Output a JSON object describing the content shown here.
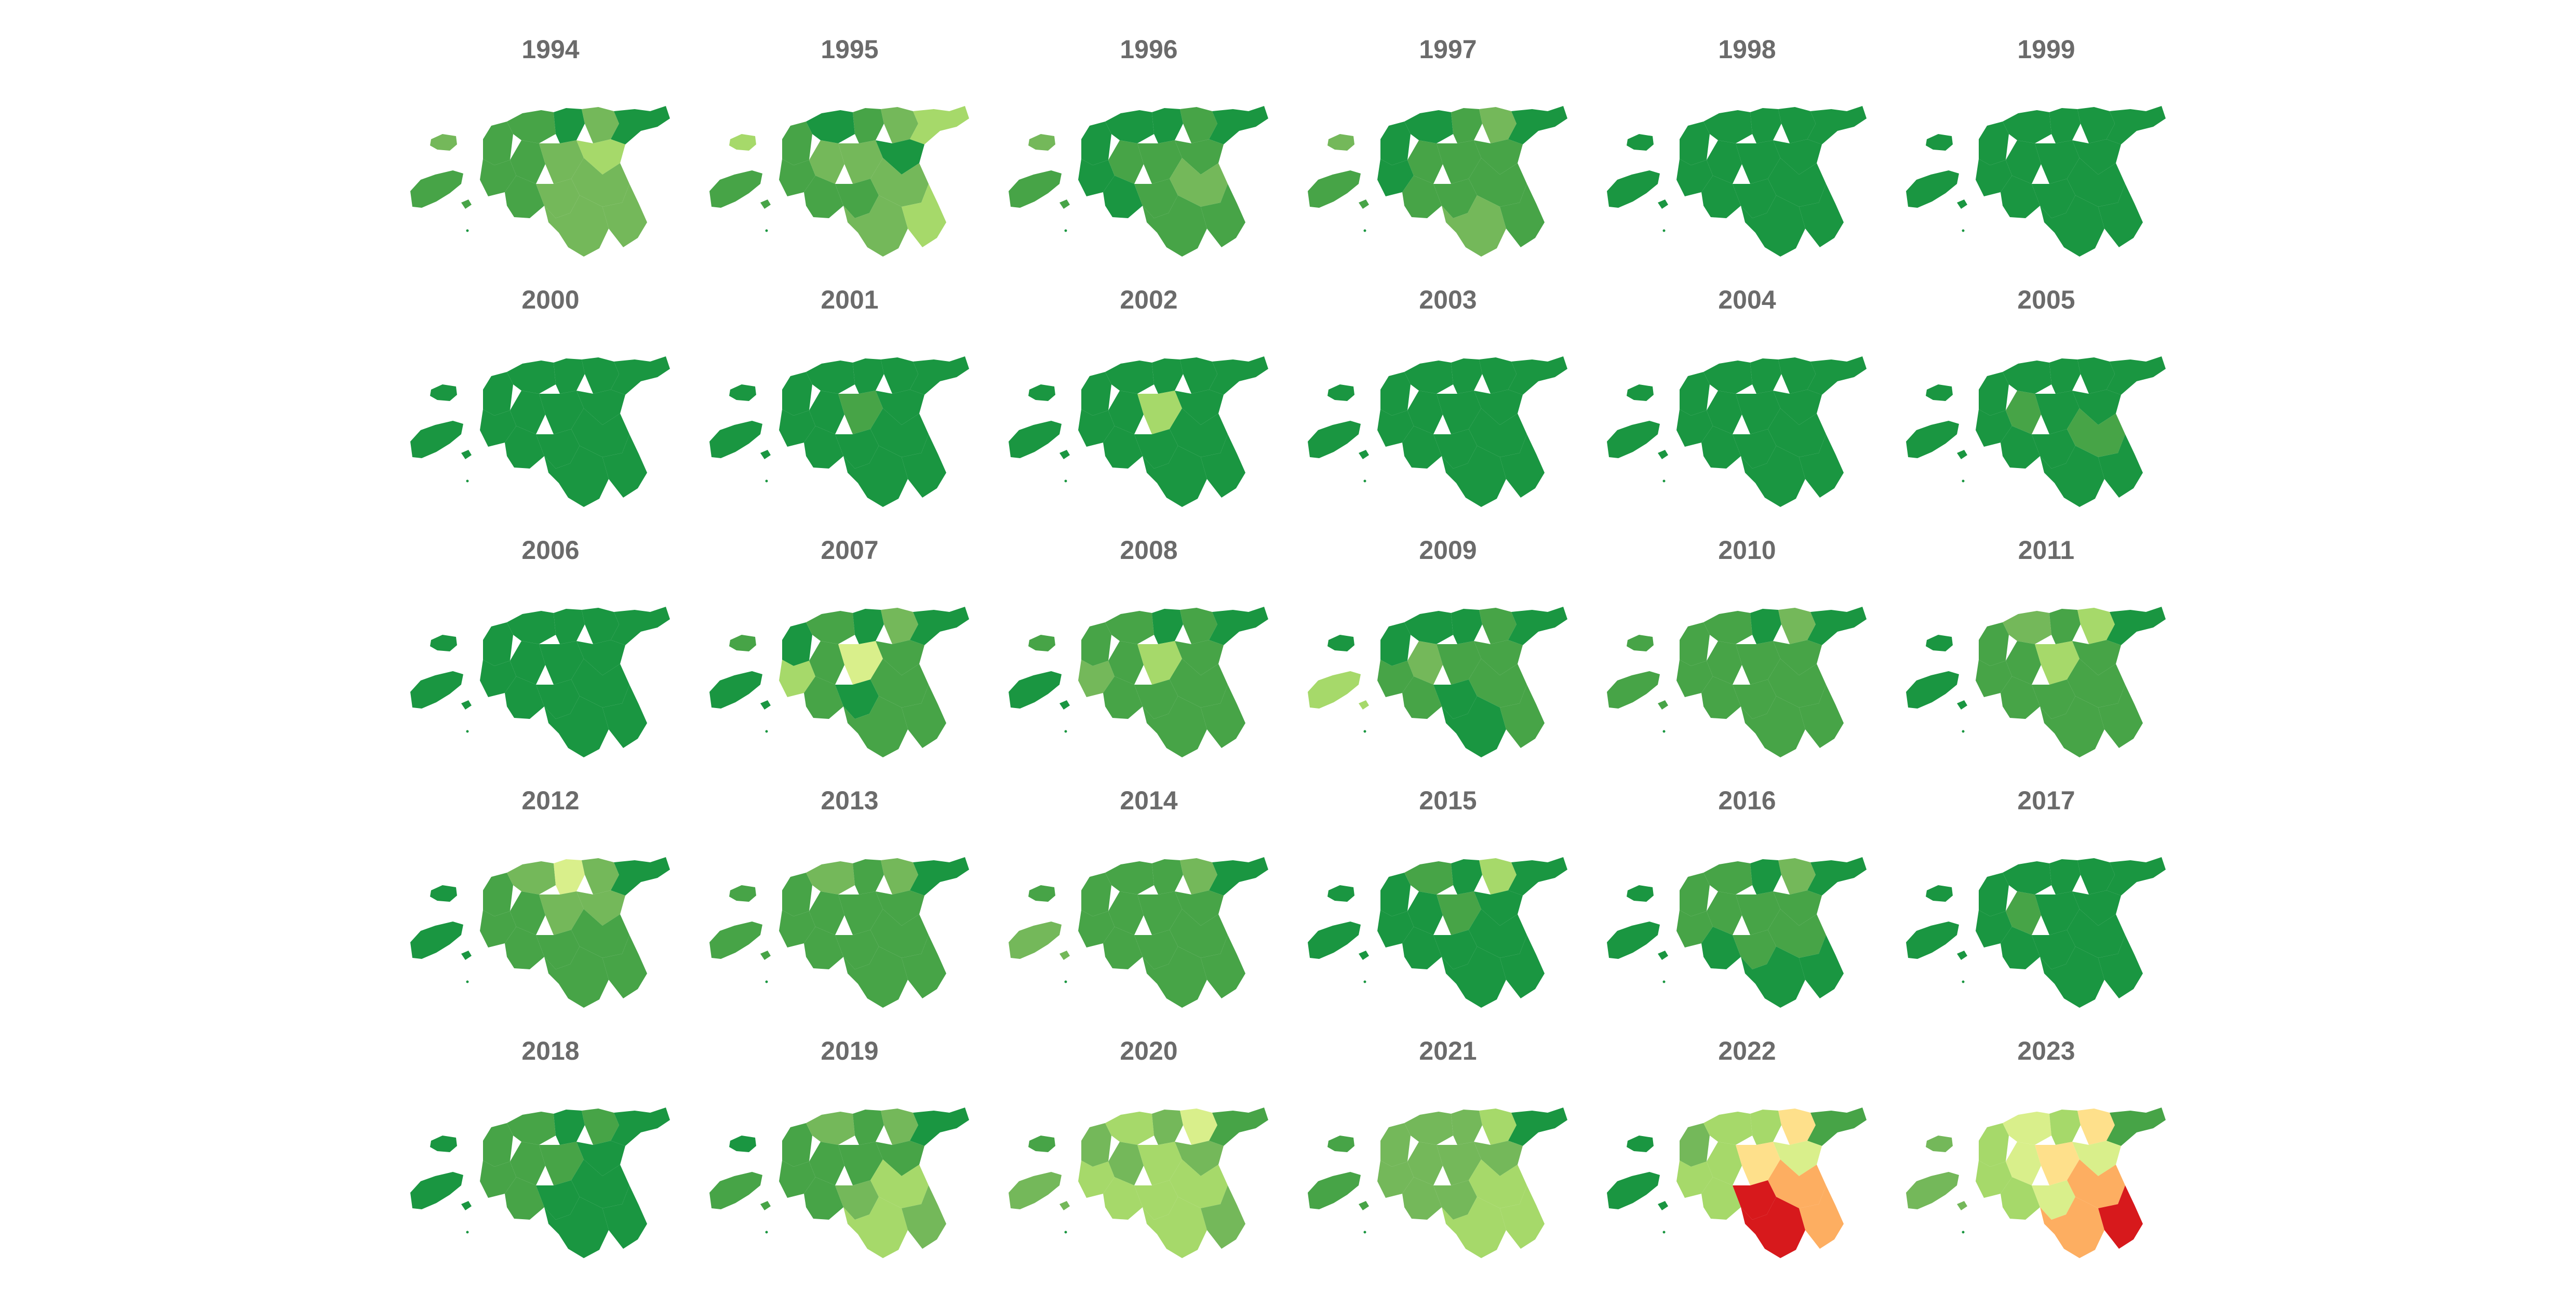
{
  "palette": [
    "#1a9641",
    "#47a447",
    "#74b85a",
    "#a6d96a",
    "#d9ef8b",
    "#fee08b",
    "#fdae61",
    "#f4652f",
    "#d7191c"
  ],
  "region_order": [
    "islands_small",
    "islands_large",
    "nw",
    "north_w",
    "north_c",
    "north_e",
    "ne",
    "west",
    "central_w",
    "central",
    "central_e",
    "sw",
    "s_central",
    "se_north",
    "se_south",
    "far_se"
  ],
  "panels": [
    {
      "year": "1994",
      "levels": [
        2,
        1,
        1,
        1,
        0,
        2,
        0,
        1,
        1,
        2,
        3,
        1,
        2,
        2,
        2,
        2
      ]
    },
    {
      "year": "1995",
      "levels": [
        3,
        1,
        1,
        0,
        1,
        2,
        3,
        1,
        2,
        2,
        0,
        1,
        1,
        2,
        2,
        3
      ]
    },
    {
      "year": "1996",
      "levels": [
        2,
        1,
        0,
        0,
        0,
        1,
        0,
        0,
        1,
        1,
        1,
        0,
        1,
        2,
        1,
        1
      ]
    },
    {
      "year": "1997",
      "levels": [
        2,
        1,
        0,
        0,
        1,
        2,
        0,
        0,
        1,
        1,
        1,
        1,
        1,
        1,
        2,
        1
      ]
    },
    {
      "year": "1998",
      "levels": [
        0,
        0,
        0,
        0,
        0,
        0,
        0,
        0,
        0,
        0,
        0,
        0,
        0,
        0,
        0,
        0
      ]
    },
    {
      "year": "1999",
      "levels": [
        0,
        0,
        0,
        0,
        0,
        0,
        0,
        0,
        0,
        0,
        0,
        0,
        0,
        0,
        0,
        0
      ]
    },
    {
      "year": "2000",
      "levels": [
        0,
        0,
        0,
        0,
        0,
        0,
        0,
        0,
        0,
        0,
        0,
        0,
        0,
        0,
        0,
        0
      ]
    },
    {
      "year": "2001",
      "levels": [
        0,
        0,
        0,
        0,
        0,
        0,
        0,
        0,
        0,
        1,
        0,
        0,
        0,
        0,
        0,
        0
      ]
    },
    {
      "year": "2002",
      "levels": [
        0,
        0,
        0,
        0,
        0,
        0,
        0,
        0,
        0,
        3,
        0,
        0,
        0,
        0,
        0,
        0
      ]
    },
    {
      "year": "2003",
      "levels": [
        0,
        0,
        0,
        0,
        0,
        0,
        0,
        0,
        0,
        0,
        0,
        0,
        0,
        0,
        0,
        0
      ]
    },
    {
      "year": "2004",
      "levels": [
        0,
        0,
        0,
        0,
        0,
        0,
        0,
        0,
        0,
        0,
        0,
        0,
        0,
        0,
        0,
        0
      ]
    },
    {
      "year": "2005",
      "levels": [
        0,
        0,
        0,
        0,
        0,
        0,
        0,
        0,
        1,
        0,
        0,
        0,
        0,
        1,
        0,
        0
      ]
    },
    {
      "year": "2006",
      "levels": [
        0,
        0,
        0,
        0,
        0,
        0,
        0,
        0,
        0,
        0,
        0,
        0,
        0,
        0,
        0,
        0
      ]
    },
    {
      "year": "2007",
      "levels": [
        1,
        0,
        0,
        1,
        0,
        2,
        0,
        3,
        1,
        4,
        1,
        1,
        0,
        1,
        1,
        1
      ]
    },
    {
      "year": "2008",
      "levels": [
        1,
        0,
        1,
        1,
        0,
        1,
        0,
        2,
        1,
        3,
        1,
        1,
        1,
        1,
        1,
        1
      ]
    },
    {
      "year": "2009",
      "levels": [
        0,
        3,
        0,
        0,
        0,
        1,
        0,
        1,
        2,
        1,
        1,
        1,
        0,
        1,
        0,
        1
      ]
    },
    {
      "year": "2010",
      "levels": [
        1,
        1,
        1,
        1,
        0,
        2,
        0,
        1,
        1,
        1,
        1,
        1,
        1,
        1,
        1,
        1
      ]
    },
    {
      "year": "2011",
      "levels": [
        0,
        0,
        1,
        2,
        1,
        3,
        0,
        1,
        1,
        3,
        1,
        1,
        1,
        1,
        1,
        1
      ]
    },
    {
      "year": "2012",
      "levels": [
        0,
        0,
        1,
        2,
        4,
        2,
        0,
        1,
        1,
        2,
        2,
        1,
        1,
        1,
        1,
        1
      ]
    },
    {
      "year": "2013",
      "levels": [
        1,
        1,
        1,
        2,
        1,
        2,
        0,
        1,
        1,
        1,
        1,
        1,
        1,
        1,
        1,
        1
      ]
    },
    {
      "year": "2014",
      "levels": [
        1,
        2,
        1,
        1,
        1,
        2,
        0,
        1,
        1,
        1,
        1,
        1,
        1,
        1,
        1,
        1
      ]
    },
    {
      "year": "2015",
      "levels": [
        0,
        0,
        0,
        1,
        0,
        3,
        0,
        0,
        0,
        1,
        0,
        0,
        0,
        0,
        0,
        0
      ]
    },
    {
      "year": "2016",
      "levels": [
        0,
        0,
        1,
        1,
        0,
        2,
        0,
        1,
        1,
        1,
        1,
        0,
        1,
        1,
        0,
        0
      ]
    },
    {
      "year": "2017",
      "levels": [
        0,
        0,
        0,
        0,
        0,
        0,
        0,
        0,
        1,
        0,
        0,
        0,
        0,
        0,
        0,
        0
      ]
    },
    {
      "year": "2018",
      "levels": [
        0,
        0,
        1,
        1,
        0,
        1,
        0,
        1,
        1,
        1,
        0,
        1,
        0,
        0,
        0,
        0
      ]
    },
    {
      "year": "2019",
      "levels": [
        0,
        1,
        1,
        2,
        1,
        2,
        0,
        1,
        1,
        1,
        1,
        1,
        2,
        3,
        3,
        2
      ]
    },
    {
      "year": "2020",
      "levels": [
        1,
        2,
        2,
        3,
        2,
        4,
        1,
        3,
        2,
        3,
        2,
        3,
        3,
        3,
        3,
        2
      ]
    },
    {
      "year": "2021",
      "levels": [
        1,
        1,
        2,
        2,
        2,
        3,
        0,
        2,
        2,
        2,
        2,
        2,
        2,
        3,
        3,
        3
      ]
    },
    {
      "year": "2022",
      "levels": [
        0,
        0,
        2,
        3,
        3,
        5,
        1,
        3,
        3,
        5,
        4,
        3,
        8,
        6,
        8,
        6
      ]
    },
    {
      "year": "2023",
      "levels": [
        2,
        2,
        3,
        4,
        3,
        5,
        1,
        3,
        4,
        5,
        4,
        3,
        4,
        6,
        6,
        8
      ]
    }
  ]
}
